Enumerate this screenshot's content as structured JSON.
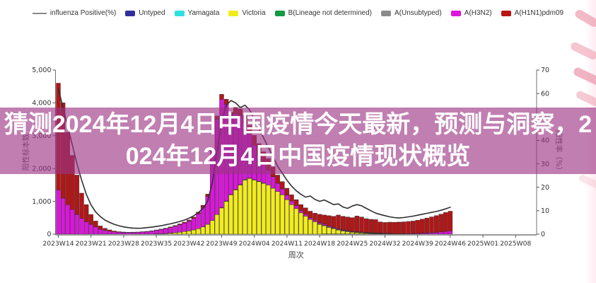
{
  "overlay": {
    "title": "猜测2024年12月4日中国疫情今天最新，预测与洞察，2024年12月4日中国疫情现状概览",
    "background": "rgba(155,50,132,0.63)"
  },
  "legend": {
    "items": [
      {
        "label": "influenza Positive(%)",
        "type": "line",
        "color": "#888888"
      },
      {
        "label": "Untyped",
        "type": "box",
        "color": "#30309c"
      },
      {
        "label": "Yamagata",
        "type": "box",
        "color": "#2ee0e0"
      },
      {
        "label": "Victoria",
        "type": "box",
        "color": "#f2ec1c"
      },
      {
        "label": "B(Lineage not determined)",
        "type": "box",
        "color": "#119b42"
      },
      {
        "label": "A(Unsubtyped)",
        "type": "box",
        "color": "#8a8a8a"
      },
      {
        "label": "A(H3N2)",
        "type": "box",
        "color": "#de14de"
      },
      {
        "label": "A(H1N1)pdm09",
        "type": "box",
        "color": "#b81414"
      }
    ]
  },
  "chart_data": {
    "type": "bar",
    "subtype": "stacked-bars-with-line",
    "xlabel": "周次",
    "ylabel_left": "阳性标本数",
    "ylabel_right": "阳性率（%）",
    "ylim_left": [
      0,
      5000
    ],
    "ylim_right": [
      0,
      70
    ],
    "grid": false,
    "legend_position": "top-center",
    "y_tick_labels_left": [
      "0",
      "1,000",
      "2,000",
      "3,000",
      "4,000",
      "5,000"
    ],
    "y_tick_labels_right": [
      "0",
      "10",
      "20",
      "30",
      "40",
      "50",
      "60",
      "70"
    ],
    "x_tick_labels": [
      "2023W14",
      "2023W21",
      "2023W28",
      "2023W35",
      "2023W42",
      "2023W49",
      "2024W04",
      "2024W11",
      "2024W18",
      "2024W25",
      "2024W32",
      "2024W39",
      "2024W46",
      "2025W01",
      "2025W08"
    ],
    "x_tick_step_weeks": 7,
    "weeks": [
      "2023W14",
      "2023W15",
      "2023W16",
      "2023W17",
      "2023W18",
      "2023W19",
      "2023W20",
      "2023W21",
      "2023W22",
      "2023W23",
      "2023W24",
      "2023W25",
      "2023W26",
      "2023W27",
      "2023W28",
      "2023W29",
      "2023W30",
      "2023W31",
      "2023W32",
      "2023W33",
      "2023W34",
      "2023W35",
      "2023W36",
      "2023W37",
      "2023W38",
      "2023W39",
      "2023W40",
      "2023W41",
      "2023W42",
      "2023W43",
      "2023W44",
      "2023W45",
      "2023W46",
      "2023W47",
      "2023W48",
      "2023W49",
      "2023W50",
      "2023W51",
      "2023W52",
      "2024W01",
      "2024W02",
      "2024W03",
      "2024W04",
      "2024W05",
      "2024W06",
      "2024W07",
      "2024W08",
      "2024W09",
      "2024W10",
      "2024W11",
      "2024W12",
      "2024W13",
      "2024W14",
      "2024W15",
      "2024W16",
      "2024W17",
      "2024W18",
      "2024W19",
      "2024W20",
      "2024W21",
      "2024W22",
      "2024W23",
      "2024W24",
      "2024W25",
      "2024W26",
      "2024W27",
      "2024W28",
      "2024W29",
      "2024W30",
      "2024W31",
      "2024W32",
      "2024W33",
      "2024W34",
      "2024W35",
      "2024W36",
      "2024W37",
      "2024W38",
      "2024W39",
      "2024W40",
      "2024W41",
      "2024W42",
      "2024W43",
      "2024W44",
      "2024W45",
      "2024W46"
    ],
    "series": [
      {
        "name": "Untyped",
        "color": "#30309c",
        "values": [
          0,
          0,
          0,
          0,
          0,
          0,
          0,
          0,
          0,
          0,
          0,
          0,
          0,
          0,
          0,
          0,
          0,
          0,
          0,
          0,
          0,
          0,
          0,
          0,
          0,
          0,
          0,
          0,
          0,
          0,
          0,
          0,
          0,
          0,
          0,
          0,
          0,
          0,
          0,
          0,
          0,
          0,
          0,
          0,
          0,
          0,
          0,
          0,
          0,
          0,
          0,
          0,
          0,
          0,
          0,
          0,
          0,
          8,
          8,
          8,
          8,
          8,
          8,
          8,
          8,
          8,
          8,
          8,
          8,
          8,
          0,
          0,
          0,
          0,
          0,
          0,
          0,
          0,
          0,
          0,
          0,
          0,
          0,
          0
        ]
      },
      {
        "name": "Yamagata",
        "color": "#2ee0e0",
        "values": [
          0,
          0,
          0,
          0,
          0,
          0,
          0,
          0,
          0,
          0,
          0,
          0,
          0,
          0,
          0,
          0,
          0,
          0,
          0,
          0,
          0,
          0,
          0,
          0,
          0,
          0,
          0,
          0,
          0,
          0,
          0,
          0,
          0,
          0,
          0,
          0,
          0,
          0,
          0,
          0,
          0,
          0,
          0,
          0,
          0,
          0,
          0,
          0,
          0,
          0,
          0,
          0,
          0,
          0,
          0,
          0,
          0,
          0,
          0,
          0,
          0,
          0,
          0,
          0,
          0,
          0,
          0,
          0,
          0,
          0,
          0,
          0,
          0,
          0,
          0,
          0,
          0,
          0,
          0,
          0,
          0,
          0,
          0,
          0
        ]
      },
      {
        "name": "Victoria",
        "color": "#f2ec1c",
        "values": [
          0,
          0,
          0,
          0,
          0,
          0,
          0,
          0,
          0,
          0,
          0,
          0,
          0,
          0,
          0,
          0,
          0,
          0,
          0,
          0,
          0,
          10,
          15,
          20,
          30,
          45,
          60,
          80,
          100,
          130,
          170,
          220,
          300,
          420,
          600,
          800,
          1000,
          1200,
          1350,
          1500,
          1650,
          1700,
          1650,
          1600,
          1550,
          1500,
          1400,
          1300,
          1200,
          1050,
          900,
          780,
          650,
          550,
          450,
          380,
          300,
          250,
          200,
          160,
          120,
          90,
          70,
          50,
          40,
          30,
          20,
          15,
          10,
          8,
          6,
          5,
          4,
          3,
          3,
          2,
          2,
          2,
          1,
          1,
          1,
          0,
          0,
          0,
          0
        ]
      },
      {
        "name": "B(Lineage not determined)",
        "color": "#119b42",
        "values": [
          0,
          0,
          0,
          0,
          0,
          0,
          0,
          0,
          0,
          0,
          0,
          0,
          0,
          0,
          0,
          0,
          0,
          0,
          0,
          0,
          0,
          0,
          0,
          0,
          0,
          0,
          0,
          0,
          0,
          0,
          0,
          0,
          0,
          0,
          0,
          10,
          10,
          10,
          10,
          10,
          10,
          10,
          10,
          10,
          10,
          0,
          0,
          0,
          0,
          0,
          0,
          0,
          0,
          0,
          0,
          0,
          0,
          0,
          0,
          0,
          0,
          0,
          0,
          0,
          0,
          0,
          0,
          0,
          0,
          0,
          0,
          0,
          0,
          0,
          0,
          0,
          0,
          0,
          0,
          0,
          0,
          0,
          0,
          0,
          0
        ]
      },
      {
        "name": "A(Unsubtyped)",
        "color": "#8a8a8a",
        "values": [
          0,
          0,
          0,
          0,
          0,
          0,
          0,
          0,
          0,
          0,
          0,
          0,
          0,
          0,
          0,
          0,
          0,
          0,
          0,
          0,
          0,
          0,
          0,
          0,
          0,
          0,
          0,
          0,
          0,
          0,
          0,
          0,
          0,
          0,
          0,
          0,
          0,
          0,
          0,
          0,
          0,
          0,
          0,
          0,
          0,
          0,
          0,
          0,
          0,
          0,
          0,
          0,
          0,
          0,
          0,
          0,
          15,
          15,
          15,
          15,
          15,
          15,
          15,
          15,
          15,
          15,
          15,
          15,
          15,
          15,
          15,
          15,
          0,
          0,
          0,
          0,
          0,
          0,
          0,
          0,
          0,
          0,
          0,
          0,
          0
        ]
      },
      {
        "name": "A(H3N2)",
        "color": "#de14de",
        "values": [
          1350,
          1100,
          900,
          750,
          600,
          480,
          380,
          300,
          220,
          150,
          120,
          90,
          70,
          60,
          55,
          50,
          55,
          60,
          70,
          80,
          95,
          110,
          130,
          150,
          175,
          200,
          230,
          260,
          300,
          350,
          450,
          600,
          850,
          2100,
          2900,
          3300,
          2950,
          2350,
          2300,
          2100,
          1750,
          1350,
          1050,
          800,
          600,
          450,
          350,
          250,
          180,
          140,
          110,
          90,
          70,
          60,
          50,
          45,
          40,
          35,
          30,
          25,
          22,
          20,
          18,
          15,
          12,
          10,
          10,
          8,
          8,
          6,
          6,
          6,
          8,
          10,
          12,
          15,
          18,
          22,
          28,
          35,
          45,
          55,
          70,
          85,
          100
        ]
      },
      {
        "name": "A(H1N1)pdm09",
        "color": "#b81414",
        "values": [
          3250,
          2900,
          2200,
          1650,
          1200,
          770,
          520,
          300,
          180,
          100,
          60,
          40,
          25,
          15,
          10,
          8,
          6,
          5,
          5,
          5,
          6,
          8,
          10,
          12,
          15,
          18,
          22,
          26,
          30,
          40,
          50,
          60,
          70,
          80,
          100,
          150,
          150,
          150,
          200,
          200,
          200,
          250,
          300,
          350,
          350,
          350,
          300,
          250,
          220,
          210,
          190,
          180,
          180,
          190,
          200,
          215,
          250,
          275,
          310,
          335,
          418,
          410,
          412,
          415,
          478,
          460,
          420,
          407,
          402,
          336,
          330,
          340,
          350,
          355,
          360,
          370,
          380,
          400,
          430,
          455,
          480,
          510,
          540,
          575,
          600
        ]
      }
    ],
    "line_series": {
      "name": "influenza Positive(%)",
      "color": "#2f2f2f",
      "axis": "right",
      "values": [
        62,
        54,
        46,
        38,
        30,
        23,
        17,
        12.5,
        9.5,
        7.5,
        6,
        5,
        4.2,
        3.6,
        3.1,
        2.8,
        2.6,
        2.5,
        2.6,
        2.8,
        3,
        3.3,
        3.6,
        4,
        4.4,
        4.9,
        5.4,
        6,
        6.8,
        7.8,
        9.2,
        11,
        14,
        22,
        35,
        48,
        55,
        57,
        56,
        54,
        55,
        53,
        49,
        45,
        41,
        37,
        33,
        29,
        26,
        23,
        20.5,
        18.5,
        17,
        15.8,
        16.3,
        14.8,
        14,
        14.6,
        13.6,
        12.6,
        12.9,
        11.6,
        11,
        12,
        12.6,
        12.1,
        11,
        10,
        9,
        8.4,
        7.9,
        7.4,
        7.1,
        6.9,
        7.1,
        7.4,
        7.7,
        8.1,
        8.5,
        8.9,
        9.3,
        9.7,
        10.2,
        10.8,
        11.5
      ]
    }
  }
}
